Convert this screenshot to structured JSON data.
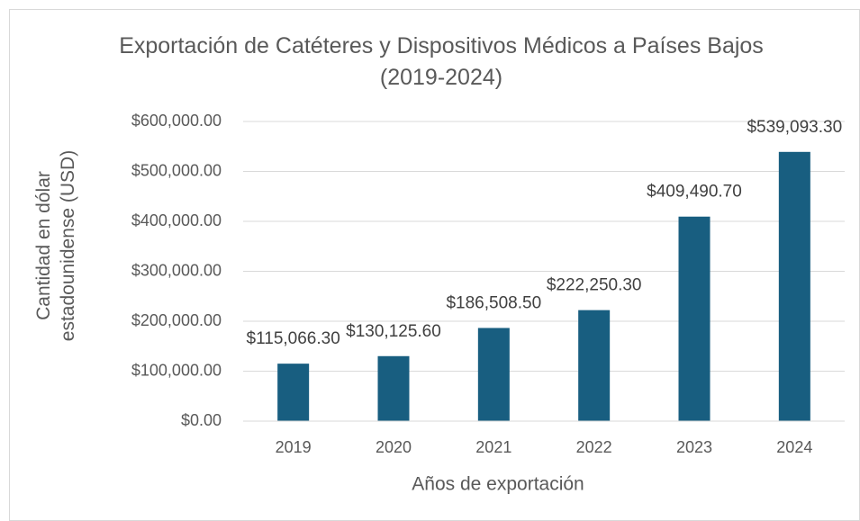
{
  "chart_data": {
    "type": "bar",
    "title": "Exportación de Catéteres y Dispositivos Médicos a Países Bajos (2019-2024)",
    "x_label": "Años de exportación",
    "y_label": "Cantidad en dólar estadounidense (USD)",
    "categories": [
      "2019",
      "2020",
      "2021",
      "2022",
      "2023",
      "2024"
    ],
    "values": [
      115066.3,
      130125.6,
      186508.5,
      222250.3,
      409490.7,
      539093.3
    ],
    "value_labels": [
      "$115,066.30",
      "$130,125.60",
      "$186,508.50",
      "$222,250.30",
      "$409,490.70",
      "$539,093.30"
    ],
    "color": "#185e80",
    "ylim": [
      0,
      600000
    ],
    "yticks": [
      {
        "value": 0,
        "label": "$0.00"
      },
      {
        "value": 100000,
        "label": "$100,000.00"
      },
      {
        "value": 200000,
        "label": "$200,000.00"
      },
      {
        "value": 300000,
        "label": "$300,000.00"
      },
      {
        "value": 400000,
        "label": "$400,000.00"
      },
      {
        "value": 500000,
        "label": "$500,000.00"
      },
      {
        "value": 600000,
        "label": "$600,000.00"
      }
    ],
    "grid": true
  }
}
